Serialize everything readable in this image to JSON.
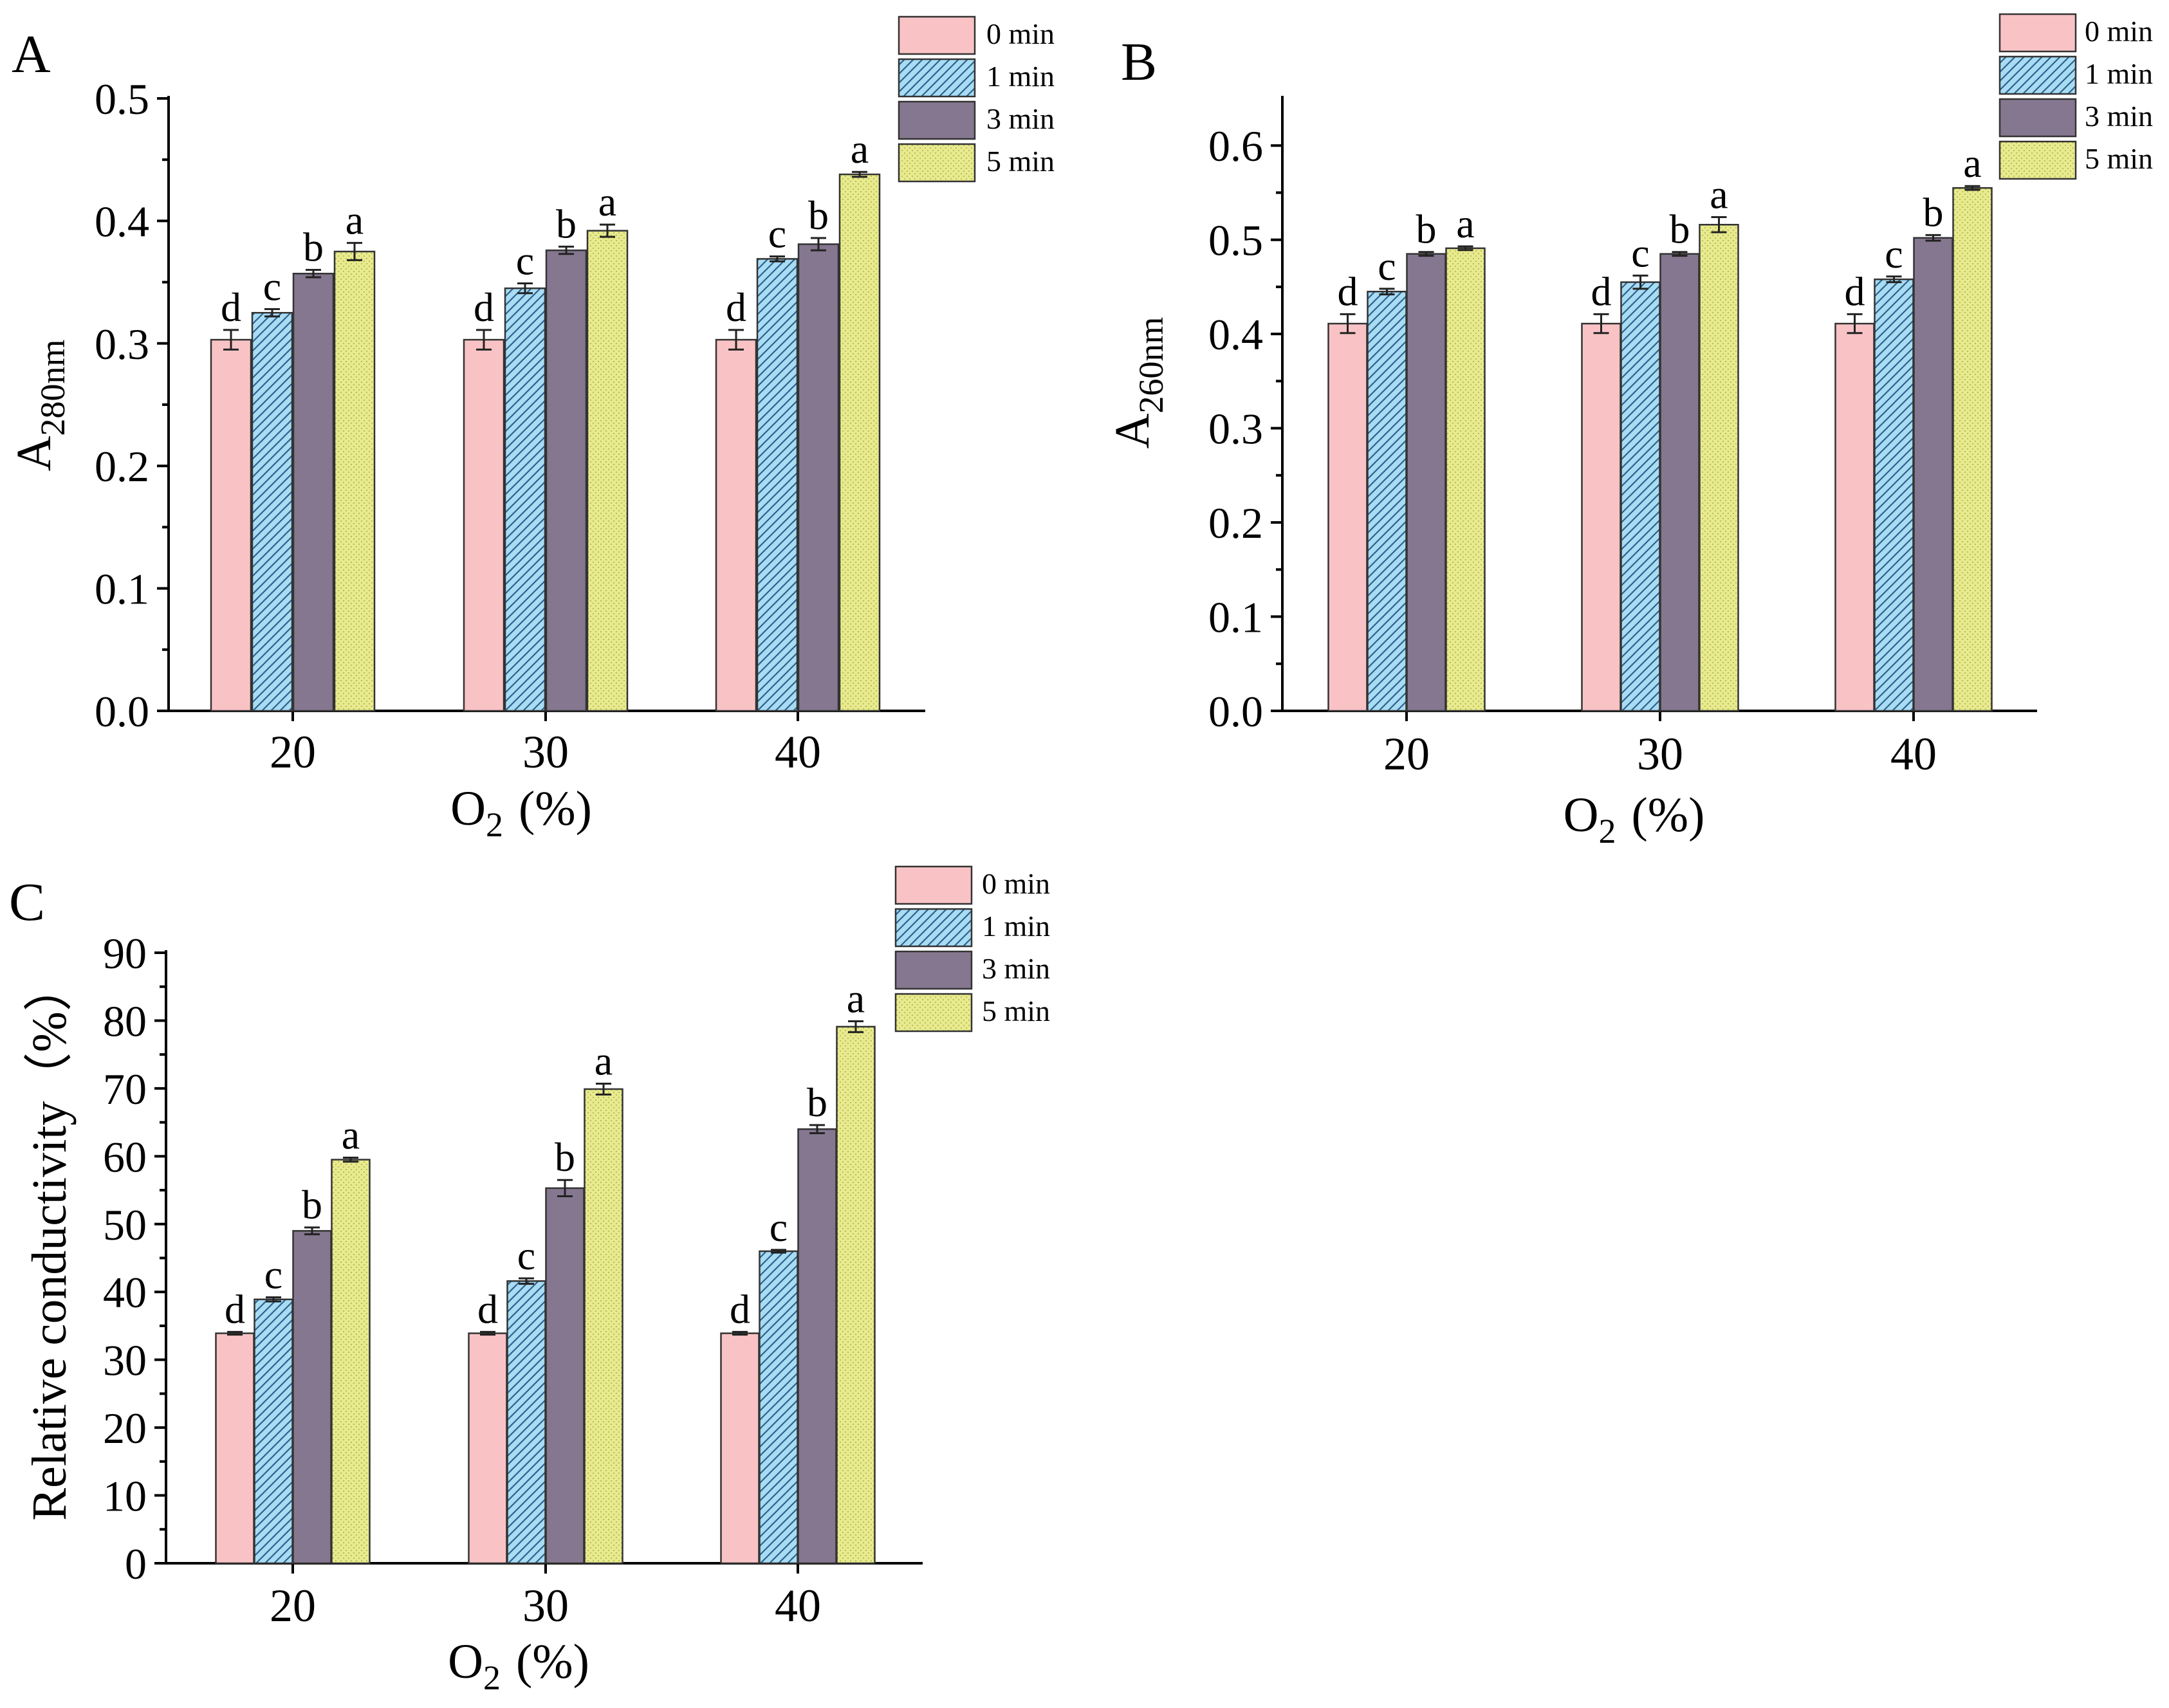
{
  "figure": {
    "legend": {
      "labels": [
        "0 min",
        "1 min",
        "3 min",
        "5 min"
      ],
      "colors": [
        "#f9c3c6",
        "#a8dcf2",
        "#85778f",
        "#e8ea8f"
      ],
      "hatch_color": "#2f5f8f",
      "dot_color": "#b8ba4f"
    }
  },
  "chart_data": [
    {
      "panel": "A",
      "type": "bar",
      "title": "",
      "categories": [
        "20",
        "30",
        "40"
      ],
      "xlabel": {
        "main": "O",
        "sub": "2",
        "unit": "(%)"
      },
      "ylabel": {
        "main": "A",
        "sub": "280nm"
      },
      "ylim": [
        0,
        0.5
      ],
      "yticks": [
        "0.0",
        "0.1",
        "0.2",
        "0.3",
        "0.4",
        "0.5"
      ],
      "series": [
        {
          "name": "0 min",
          "values": [
            0.303,
            0.303,
            0.303
          ],
          "errors": [
            0.008,
            0.008,
            0.008
          ],
          "letters": [
            "d",
            "d",
            "d"
          ]
        },
        {
          "name": "1 min",
          "values": [
            0.325,
            0.345,
            0.369
          ],
          "errors": [
            0.003,
            0.004,
            0.002
          ],
          "letters": [
            "c",
            "c",
            "c"
          ]
        },
        {
          "name": "3 min",
          "values": [
            0.357,
            0.376,
            0.381
          ],
          "errors": [
            0.003,
            0.003,
            0.005
          ],
          "letters": [
            "b",
            "b",
            "b"
          ]
        },
        {
          "name": "5 min",
          "values": [
            0.375,
            0.392,
            0.438
          ],
          "errors": [
            0.007,
            0.005,
            0.002
          ],
          "letters": [
            "a",
            "a",
            "a"
          ]
        }
      ]
    },
    {
      "panel": "B",
      "type": "bar",
      "title": "",
      "categories": [
        "20",
        "30",
        "40"
      ],
      "xlabel": {
        "main": "O",
        "sub": "2",
        "unit": "(%)"
      },
      "ylabel": {
        "main": "A",
        "sub": "260nm"
      },
      "ylim": [
        0,
        0.65
      ],
      "yticks": [
        "0.0",
        "0.1",
        "0.2",
        "0.3",
        "0.4",
        "0.5",
        "0.6"
      ],
      "series": [
        {
          "name": "0 min",
          "values": [
            0.411,
            0.411,
            0.411
          ],
          "errors": [
            0.01,
            0.01,
            0.01
          ],
          "letters": [
            "d",
            "d",
            "d"
          ]
        },
        {
          "name": "1 min",
          "values": [
            0.445,
            0.455,
            0.458
          ],
          "errors": [
            0.003,
            0.007,
            0.003
          ],
          "letters": [
            "c",
            "c",
            "c"
          ]
        },
        {
          "name": "3 min",
          "values": [
            0.485,
            0.485,
            0.502
          ],
          "errors": [
            0.002,
            0.002,
            0.003
          ],
          "letters": [
            "b",
            "b",
            "b"
          ]
        },
        {
          "name": "5 min",
          "values": [
            0.491,
            0.516,
            0.555
          ],
          "errors": [
            0.002,
            0.008,
            0.002
          ],
          "letters": [
            "a",
            "a",
            "a"
          ]
        }
      ]
    },
    {
      "panel": "C",
      "type": "bar",
      "title": "",
      "categories": [
        "20",
        "30",
        "40"
      ],
      "xlabel": {
        "main": "O",
        "sub": "2",
        "unit": "(%)"
      },
      "ylabel": {
        "main": "Relative conductivity（%）",
        "sub": ""
      },
      "ylim": [
        0,
        90
      ],
      "yticks": [
        "0",
        "10",
        "20",
        "30",
        "40",
        "50",
        "60",
        "70",
        "80",
        "90"
      ],
      "series": [
        {
          "name": "0 min",
          "values": [
            33.9,
            33.9,
            33.9
          ],
          "errors": [
            0.2,
            0.2,
            0.2
          ],
          "letters": [
            "d",
            "d",
            "d"
          ]
        },
        {
          "name": "1 min",
          "values": [
            38.9,
            41.6,
            46.0
          ],
          "errors": [
            0.3,
            0.4,
            0.2
          ],
          "letters": [
            "c",
            "c",
            "c"
          ]
        },
        {
          "name": "3 min",
          "values": [
            49.0,
            55.3,
            64.0
          ],
          "errors": [
            0.5,
            1.2,
            0.6
          ],
          "letters": [
            "b",
            "b",
            "b"
          ]
        },
        {
          "name": "5 min",
          "values": [
            59.5,
            69.9,
            79.1
          ],
          "errors": [
            0.3,
            0.8,
            0.8
          ],
          "letters": [
            "a",
            "a",
            "a"
          ]
        }
      ]
    }
  ]
}
